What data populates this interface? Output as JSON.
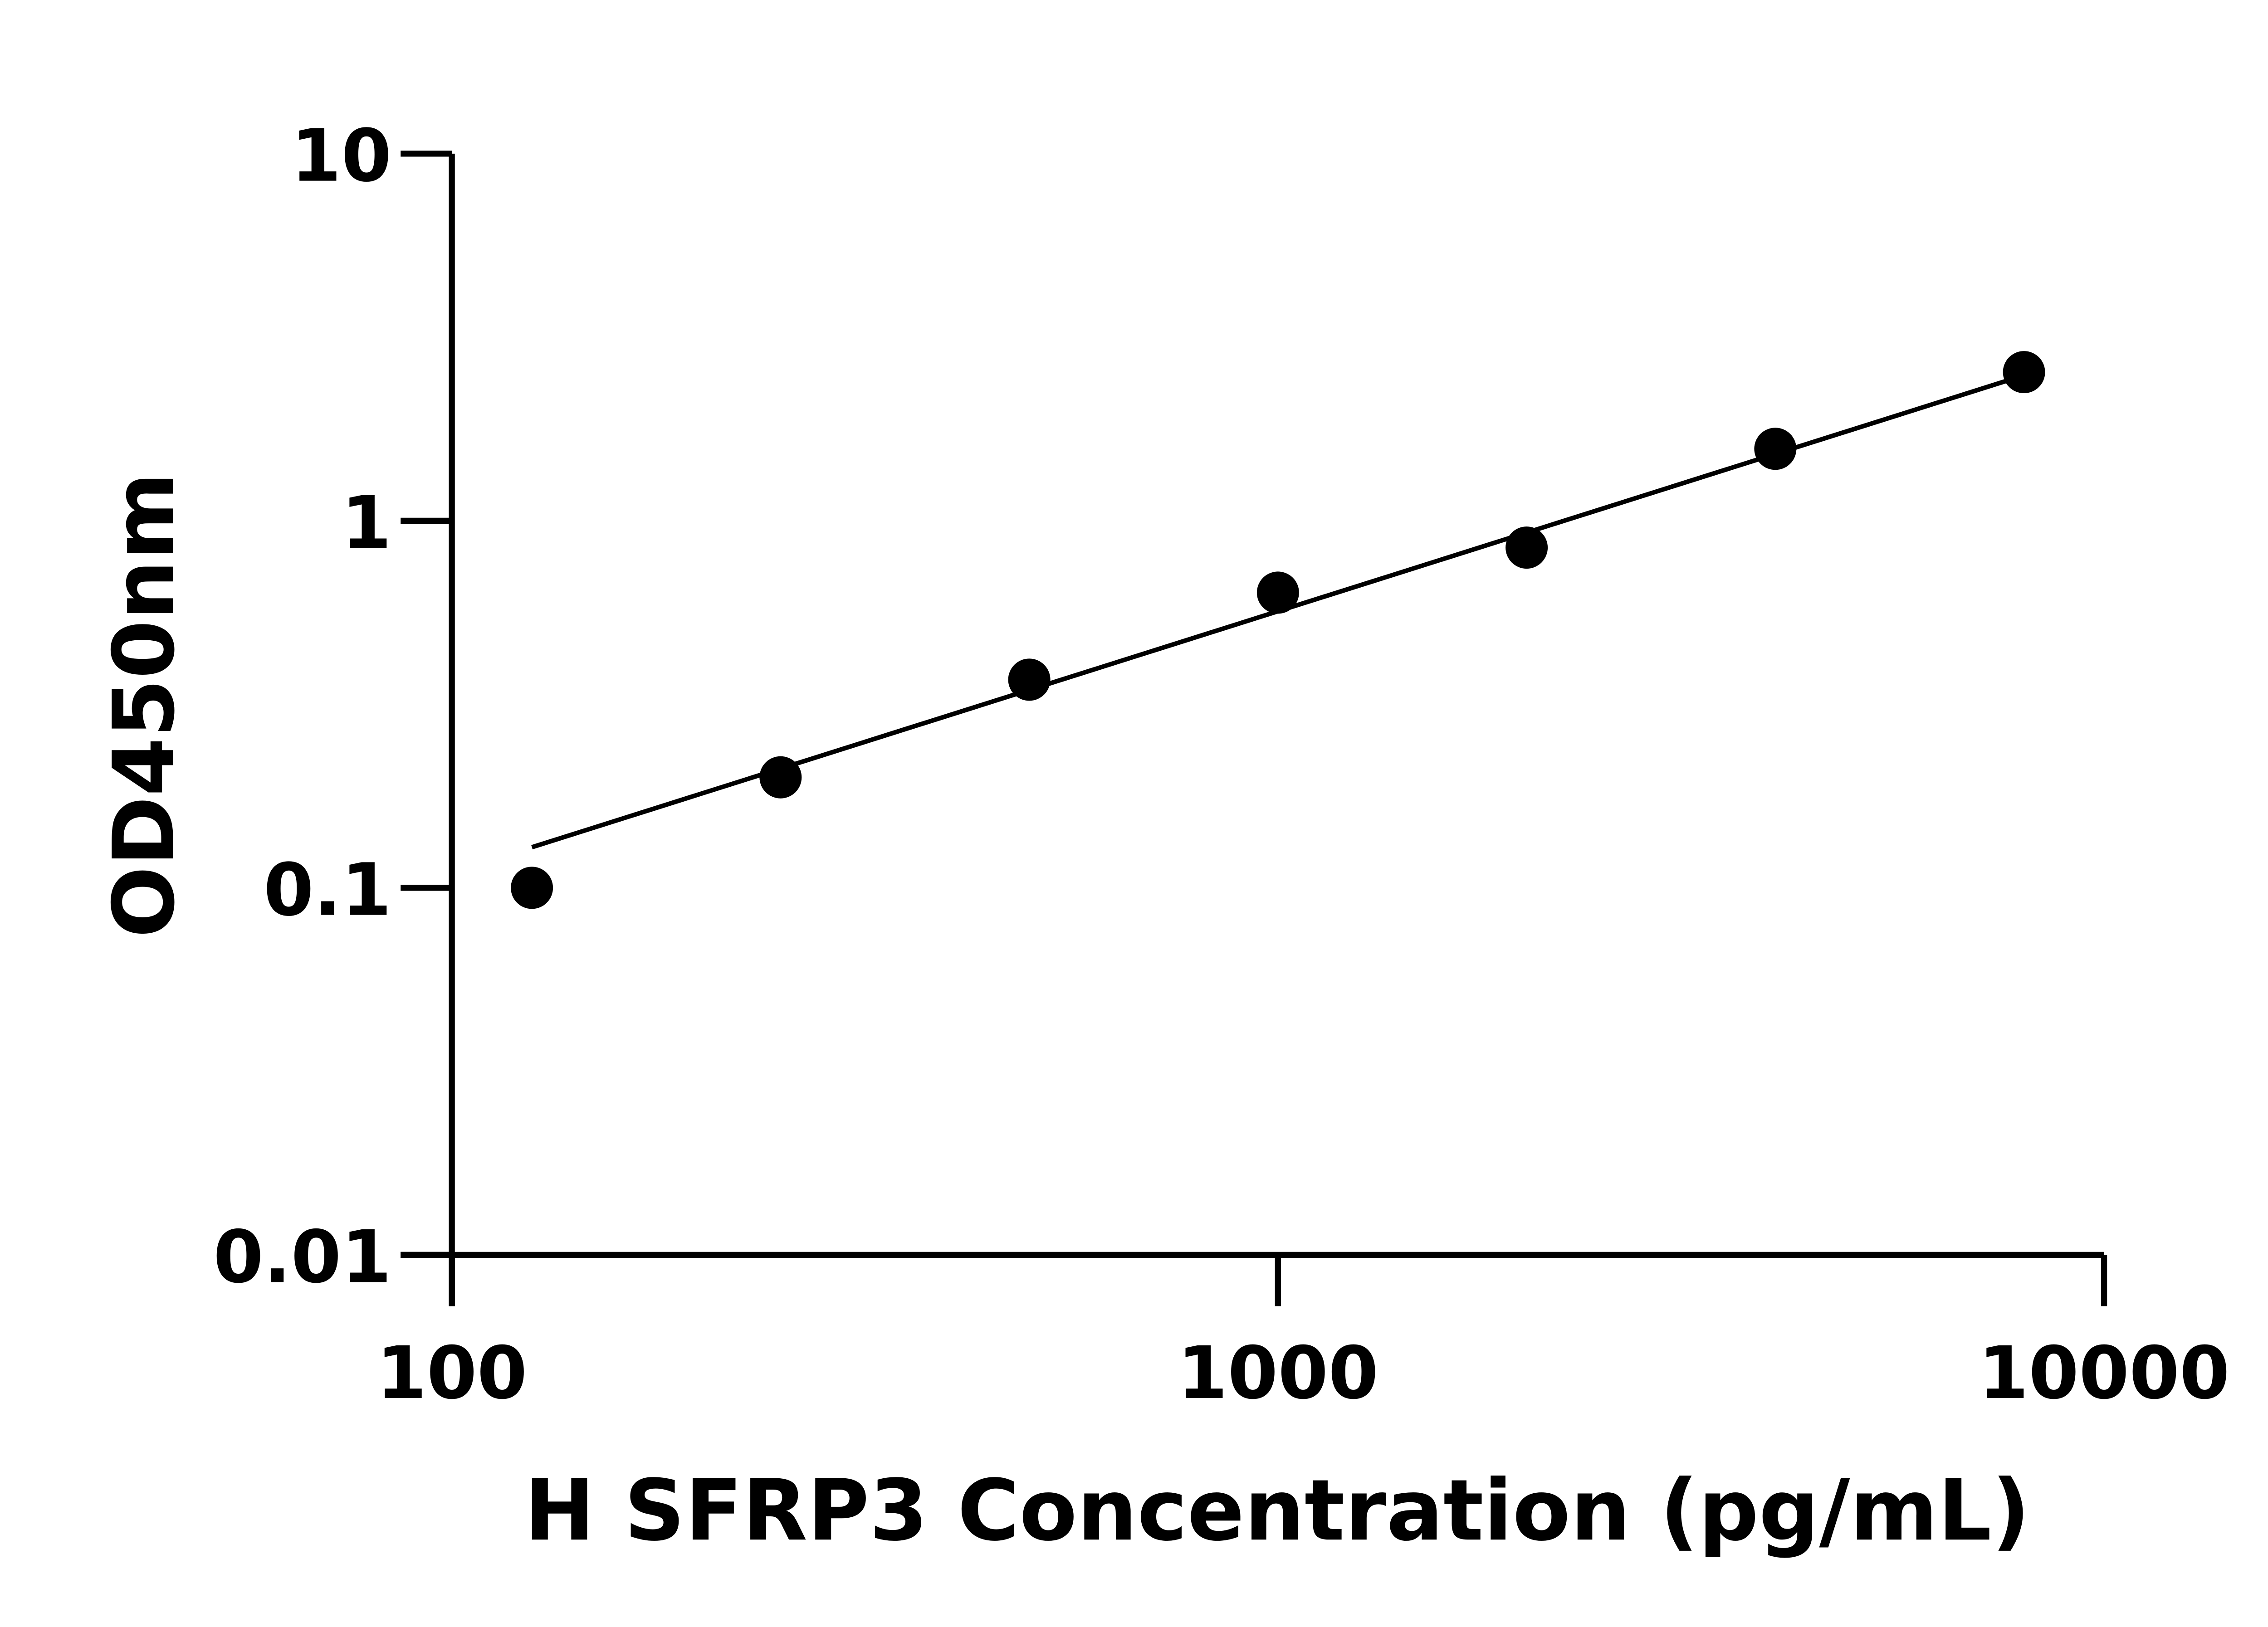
{
  "chart_data": {
    "type": "scatter",
    "title": "",
    "xlabel": "H SFRP3 Concentration (pg/mL)",
    "ylabel": "OD450nm",
    "xscale": "log",
    "yscale": "log",
    "xlim": [
      100,
      10000
    ],
    "ylim": [
      0.01,
      10
    ],
    "xticks": [
      "100",
      "1000",
      "10000"
    ],
    "yticks": [
      "0.01",
      "0.1",
      "1",
      "10"
    ],
    "grid": false,
    "legend": "none",
    "points": {
      "x": [
        125,
        250,
        500,
        1000,
        2000,
        4000,
        8000
      ],
      "y": [
        0.1,
        0.2,
        0.369,
        0.637,
        0.845,
        1.57,
        2.54
      ]
    },
    "fit_line": {
      "x": [
        125,
        8000
      ],
      "y": [
        0.129,
        2.49
      ]
    },
    "colors": {
      "marker": "#000000",
      "line": "#000000"
    }
  }
}
